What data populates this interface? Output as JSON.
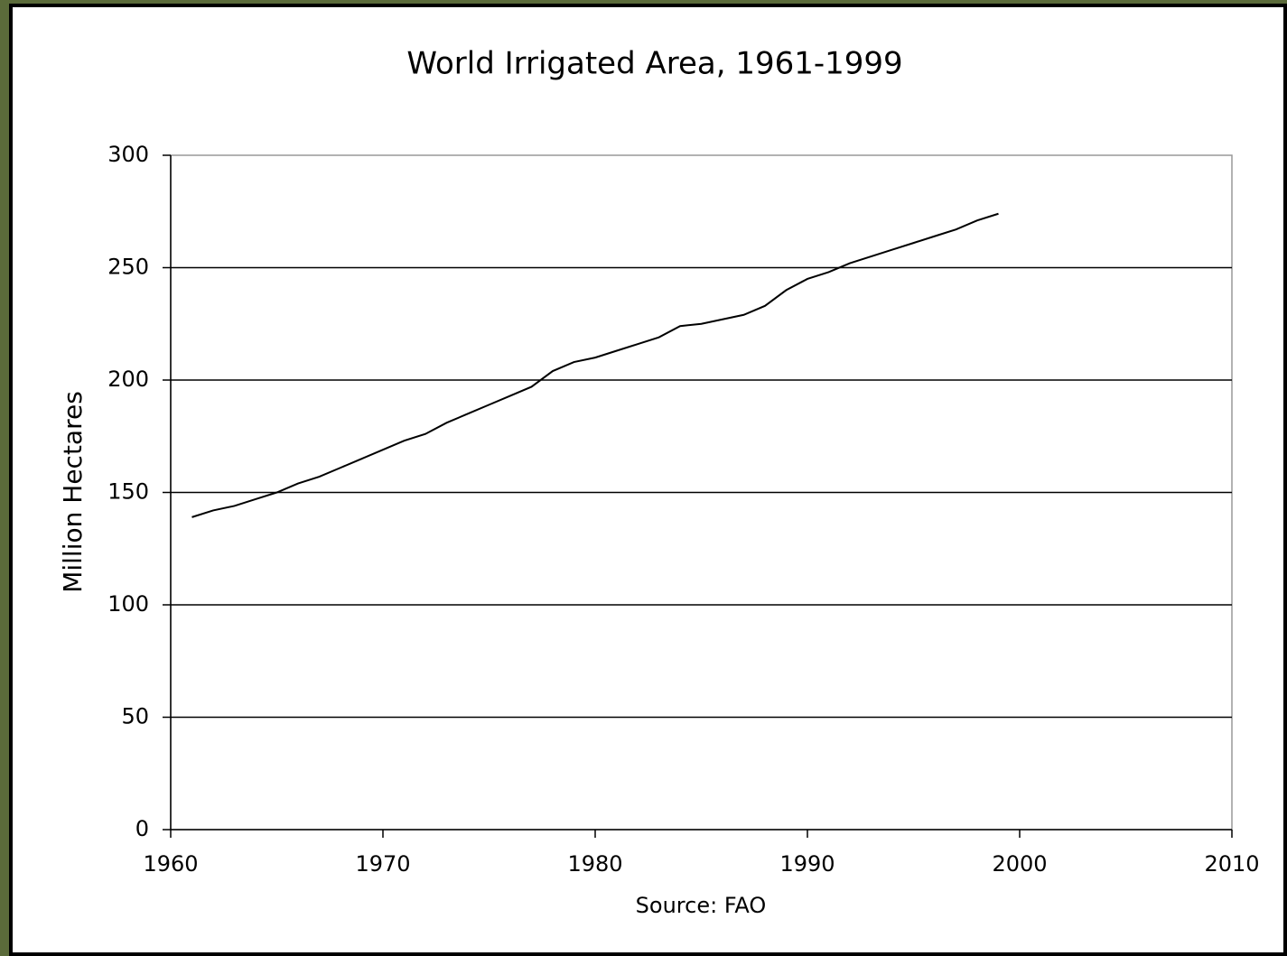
{
  "chart_data": {
    "type": "line",
    "title": "World Irrigated Area, 1961-1999",
    "x_label": "Source: FAO",
    "y_label": "Million Hectares",
    "x": [
      1961,
      1962,
      1963,
      1964,
      1965,
      1966,
      1967,
      1968,
      1969,
      1970,
      1971,
      1972,
      1973,
      1974,
      1975,
      1976,
      1977,
      1978,
      1979,
      1980,
      1981,
      1982,
      1983,
      1984,
      1985,
      1986,
      1987,
      1988,
      1989,
      1990,
      1991,
      1992,
      1993,
      1994,
      1995,
      1996,
      1997,
      1998,
      1999
    ],
    "series": [
      {
        "color": "#000000",
        "values": [
          139,
          142,
          144,
          147,
          150,
          154,
          157,
          161,
          165,
          169,
          173,
          176,
          181,
          185,
          189,
          193,
          197,
          204,
          208,
          210,
          213,
          216,
          219,
          224,
          225,
          227,
          229,
          233,
          240,
          245,
          248,
          252,
          255,
          258,
          261,
          264,
          267,
          271,
          274
        ]
      }
    ],
    "xlim": [
      1960,
      2010
    ],
    "xticks": [
      1960,
      1970,
      1980,
      1990,
      2000,
      2010
    ],
    "ylim": [
      0,
      300
    ],
    "yticks": [
      0,
      50,
      100,
      150,
      200,
      250,
      300
    ],
    "grid": true
  }
}
